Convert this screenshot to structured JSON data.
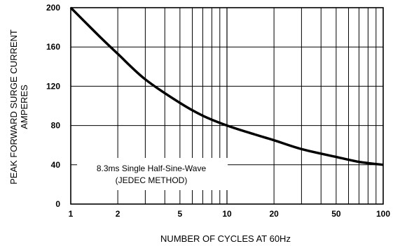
{
  "chart_data": {
    "type": "line",
    "xscale": "log",
    "xlim": [
      1,
      100
    ],
    "ylim": [
      0,
      200
    ],
    "x_ticks": [
      1,
      2,
      5,
      10,
      20,
      50,
      100
    ],
    "x_tick_labels": [
      "1",
      "2",
      "5",
      "10",
      "20",
      "50",
      "100"
    ],
    "y_ticks": [
      0,
      40,
      80,
      120,
      160,
      200
    ],
    "y_tick_labels": [
      "0",
      "40",
      "80",
      "120",
      "160",
      "200"
    ],
    "xlabel": "NUMBER OF CYCLES AT 60Hz",
    "ylabel_line1": "PEAK FORWARD SURGE CURRENT",
    "ylabel_line2": "AMPERES",
    "annotation_line1": "8.3ms Single Half-Sine-Wave",
    "annotation_line2": "(JEDEC METHOD)",
    "grid": true,
    "series": [
      {
        "x": [
          1,
          1.5,
          2,
          3,
          5,
          7,
          10,
          15,
          20,
          30,
          50,
          70,
          100
        ],
        "y": [
          200,
          172,
          153,
          127,
          103,
          90,
          80,
          71,
          65,
          56,
          48,
          43,
          40
        ]
      }
    ]
  }
}
